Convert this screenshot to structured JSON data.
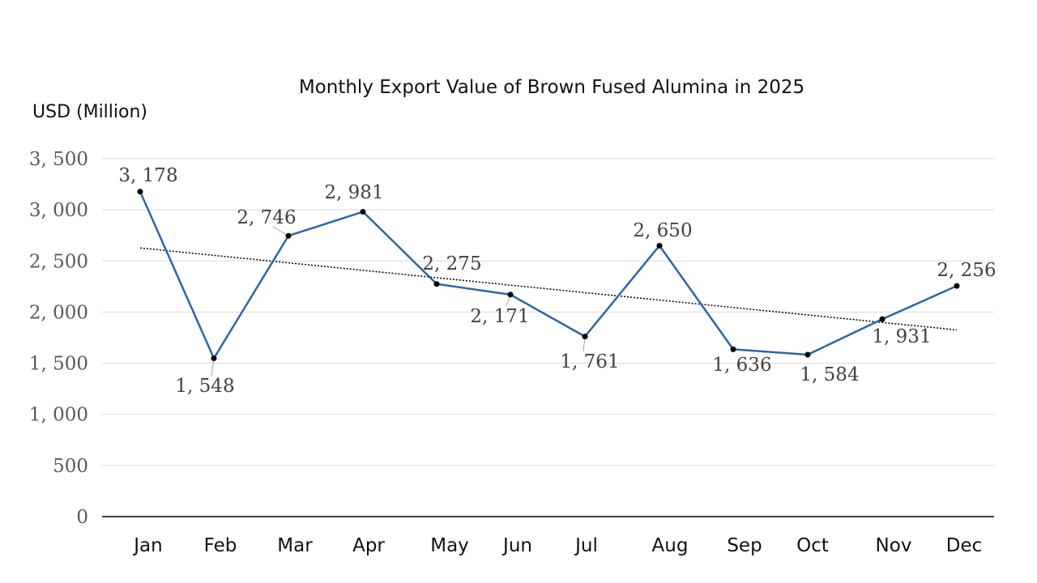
{
  "chart_data": {
    "type": "line",
    "title": "Monthly Export Value of Brown Fused Alumina in 2025",
    "ylabel": "USD (Million)",
    "xlabel": "",
    "categories": [
      "Jan",
      "Feb",
      "Mar",
      "Apr",
      "May",
      "Jun",
      "Jul",
      "Aug",
      "Sep",
      "Oct",
      "Nov",
      "Dec"
    ],
    "values": [
      3178,
      1548,
      2746,
      2981,
      2275,
      2171,
      1761,
      2650,
      1636,
      1584,
      1931,
      2256
    ],
    "value_labels": [
      "3, 178",
      "1, 548",
      "2, 746",
      "2, 981",
      "2, 275",
      "2, 171",
      "1, 761",
      "2, 650",
      "1, 636",
      "1, 584",
      "1, 931",
      "2, 256"
    ],
    "ylim": [
      0,
      3500
    ],
    "yticks": [
      0,
      500,
      1000,
      1500,
      2000,
      2500,
      3000,
      3500
    ],
    "ytick_labels": [
      "0",
      "500",
      "1, 000",
      "1, 500",
      "2, 000",
      "2, 500",
      "3, 000",
      "3, 500"
    ],
    "trendline": {
      "type": "linear",
      "style": "dotted"
    },
    "grid": true,
    "legend": "none",
    "series_color": "#2e65a3"
  }
}
